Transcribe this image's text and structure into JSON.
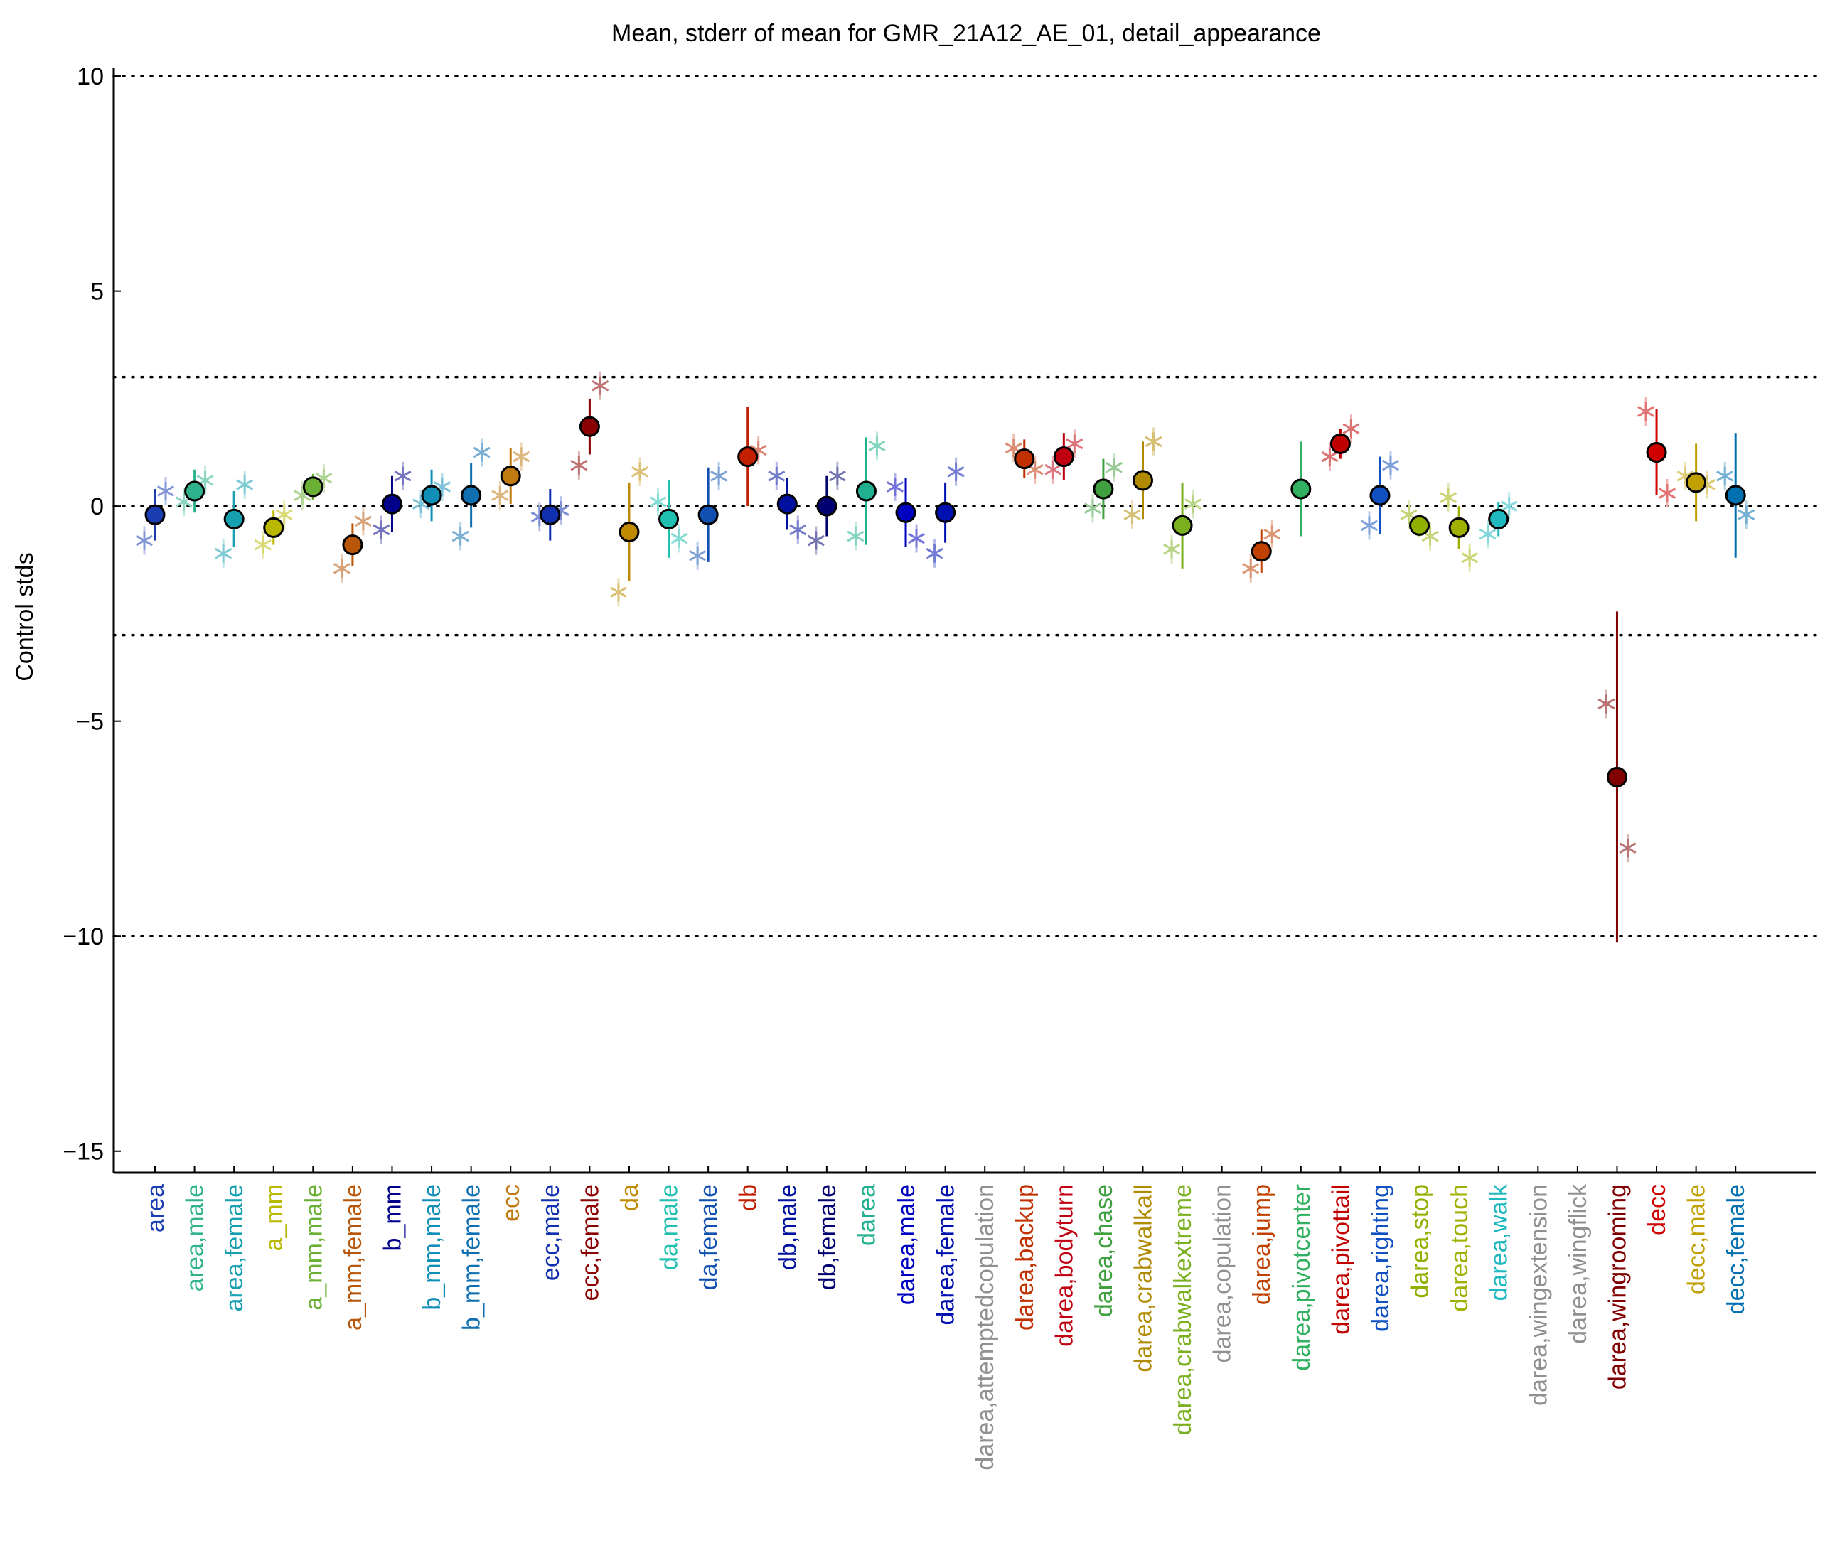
{
  "chart_data": {
    "type": "errorbar",
    "title": "Mean, stderr of mean for GMR_21A12_AE_01, detail_appearance",
    "ylabel": "Control stds",
    "categories": [
      "area",
      "area,male",
      "area,female",
      "a_mm",
      "a_mm,male",
      "a_mm,female",
      "b_mm",
      "b_mm,male",
      "b_mm,female",
      "ecc",
      "ecc,male",
      "ecc,female",
      "da",
      "da,male",
      "da,female",
      "db",
      "db,male",
      "db,female",
      "darea",
      "darea,male",
      "darea,female",
      "darea,attemptedcopulation",
      "darea,backup",
      "darea,bodyturn",
      "darea,chase",
      "darea,crabwalkall",
      "darea,crabwalkextreme",
      "darea,copulation",
      "darea,jump",
      "darea,pivotcenter",
      "darea,pivottail",
      "darea,righting",
      "darea,stop",
      "darea,touch",
      "darea,walk",
      "darea,wingextension",
      "darea,wingflick",
      "darea,wingrooming",
      "decc",
      "decc,male",
      "decc,female"
    ],
    "values": [
      -0.2,
      0.35,
      -0.3,
      -0.5,
      0.45,
      -0.9,
      0.05,
      0.25,
      0.25,
      0.7,
      -0.2,
      1.85,
      -0.6,
      -0.3,
      -0.2,
      1.15,
      0.05,
      0,
      0.35,
      -0.15,
      -0.15,
      null,
      1.1,
      1.15,
      0.4,
      0.6,
      -0.45,
      null,
      -1.05,
      0.4,
      1.45,
      0.25,
      -0.45,
      -0.5,
      -0.3,
      null,
      null,
      -6.3,
      1.25,
      0.55,
      0.25
    ],
    "errors": [
      0.6,
      0.5,
      0.65,
      0.4,
      0.3,
      0.5,
      0.65,
      0.6,
      0.75,
      0.65,
      0.6,
      0.65,
      1.15,
      0.9,
      1.1,
      1.15,
      0.6,
      0.7,
      1.25,
      0.8,
      0.7,
      null,
      0.45,
      0.55,
      0.7,
      0.9,
      1.0,
      null,
      0.5,
      1.1,
      0.35,
      0.9,
      0.25,
      0.5,
      0.4,
      null,
      null,
      3.85,
      1.0,
      0.9,
      1.45
    ],
    "left_values": [
      -0.8,
      0.1,
      -1.1,
      -0.9,
      0.25,
      -1.45,
      -0.55,
      0.05,
      -0.7,
      0.25,
      -0.25,
      0.95,
      -2.0,
      0.1,
      -1.15,
      null,
      0.7,
      -0.8,
      -0.7,
      0.45,
      -1.1,
      null,
      1.35,
      0.85,
      -0.05,
      -0.2,
      -1.0,
      null,
      -1.45,
      null,
      1.15,
      -0.45,
      -0.2,
      0.2,
      -0.65,
      null,
      null,
      -4.6,
      2.2,
      0.7,
      0.7
    ],
    "right_values": [
      0.35,
      0.6,
      0.5,
      -0.2,
      0.65,
      -0.35,
      0.7,
      0.45,
      1.25,
      1.15,
      -0.1,
      2.8,
      0.8,
      -0.75,
      0.7,
      1.3,
      -0.55,
      0.7,
      1.4,
      -0.75,
      0.8,
      null,
      0.85,
      1.45,
      0.9,
      1.5,
      0.05,
      null,
      -0.65,
      null,
      1.8,
      0.95,
      -0.7,
      -1.2,
      0.0,
      null,
      null,
      -7.95,
      0.3,
      0.5,
      -0.2
    ],
    "colors": [
      "#1a3db0",
      "#2eb38c",
      "#17a0b0",
      "#b8b800",
      "#6ab035",
      "#b8560a",
      "#00008b",
      "#0f8fb8",
      "#0f6fb0",
      "#c07a10",
      "#1030b0",
      "#8b0000",
      "#c08a00",
      "#20c0b0",
      "#1050b0",
      "#c02000",
      "#0010a0",
      "#000070",
      "#20b090",
      "#0000c0",
      "#0010b0",
      "#909090",
      "#c03000",
      "#c00010",
      "#40a040",
      "#b08a00",
      "#7ab020",
      "#909090",
      "#c04000",
      "#30b060",
      "#c00000",
      "#1050c0",
      "#90b000",
      "#a0b000",
      "#20b8c0",
      "#909090",
      "#909090",
      "#800000",
      "#d00000",
      "#c0a000",
      "#0070b0"
    ],
    "ylim": [
      -15.5,
      10.2
    ],
    "yticks": [
      {
        "value": -15,
        "label": "−15"
      },
      {
        "value": -10,
        "label": "−10"
      },
      {
        "value": -5,
        "label": "−5"
      },
      0,
      5,
      10
    ],
    "hlines": [
      10,
      3,
      0,
      -3,
      -10
    ]
  }
}
